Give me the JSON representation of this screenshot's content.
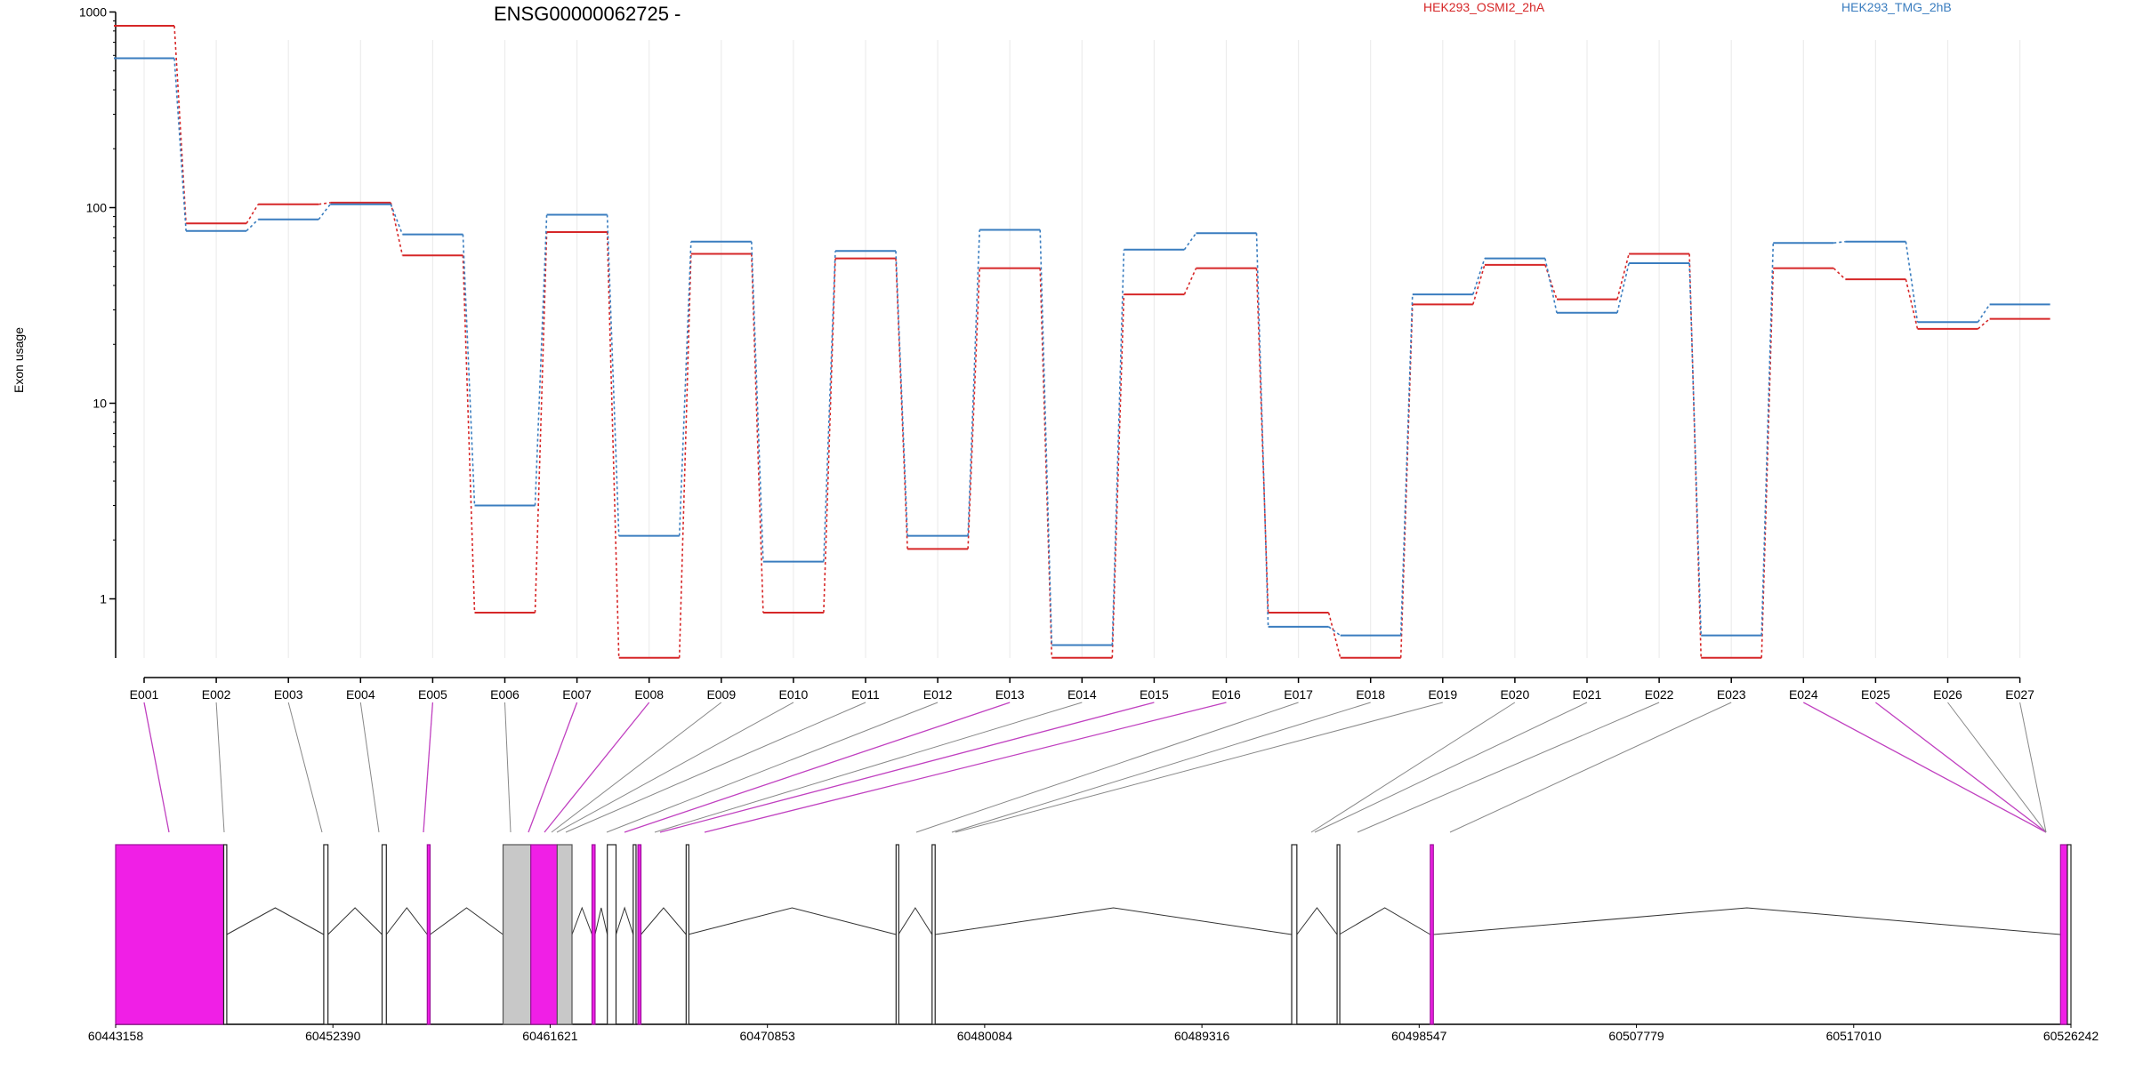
{
  "chart_data": {
    "type": "line",
    "title": "ENSG00000062725 -",
    "xlabel": "",
    "ylabel": "Exon usage",
    "yscale": "log",
    "ylim": [
      0.5,
      1000
    ],
    "yticks": [
      1,
      10,
      100,
      1000
    ],
    "ytick_labels": [
      "1",
      "10",
      "100",
      "1000"
    ],
    "grid": "vertical",
    "legend_placement": "top",
    "categories": [
      "E001",
      "E002",
      "E003",
      "E004",
      "E005",
      "E006",
      "E007",
      "E008",
      "E009",
      "E010",
      "E011",
      "E012",
      "E013",
      "E014",
      "E015",
      "E016",
      "E017",
      "E018",
      "E019",
      "E020",
      "E021",
      "E022",
      "E023",
      "E024",
      "E025",
      "E026",
      "E027"
    ],
    "series": [
      {
        "name": "HEK293_OSMI2_2hA",
        "color": "#d62728",
        "values": [
          850,
          83,
          104,
          106,
          57,
          0.85,
          75,
          0.5,
          58,
          0.85,
          55,
          1.8,
          49,
          0.5,
          36,
          49,
          0.85,
          0.5,
          32,
          51,
          34,
          58,
          0.5,
          49,
          43,
          24,
          27
        ]
      },
      {
        "name": "HEK293_TMG_2hB",
        "color": "#3a7dbf",
        "values": [
          580,
          76,
          87,
          104,
          73,
          3.0,
          92,
          2.1,
          67,
          1.55,
          60,
          2.1,
          77,
          0.58,
          61,
          74,
          0.72,
          0.65,
          36,
          55,
          29,
          52,
          0.65,
          66,
          67,
          26,
          32
        ]
      }
    ],
    "gene_model": {
      "genomic_ticks": [
        "60443158",
        "60452390",
        "60461621",
        "60470853",
        "60480084",
        "60489316",
        "60498547",
        "60507779",
        "60517010",
        "60526242"
      ],
      "exon_colors": {
        "significant": "#f01fe6",
        "significant_stroke": "#9b109a",
        "ordinary": "#ffffff",
        "shaded": "#c8c8c8"
      },
      "highlighted_exons": [
        "E001",
        "E005",
        "E007",
        "E008",
        "E013",
        "E015",
        "E016",
        "E024",
        "E025"
      ]
    }
  }
}
